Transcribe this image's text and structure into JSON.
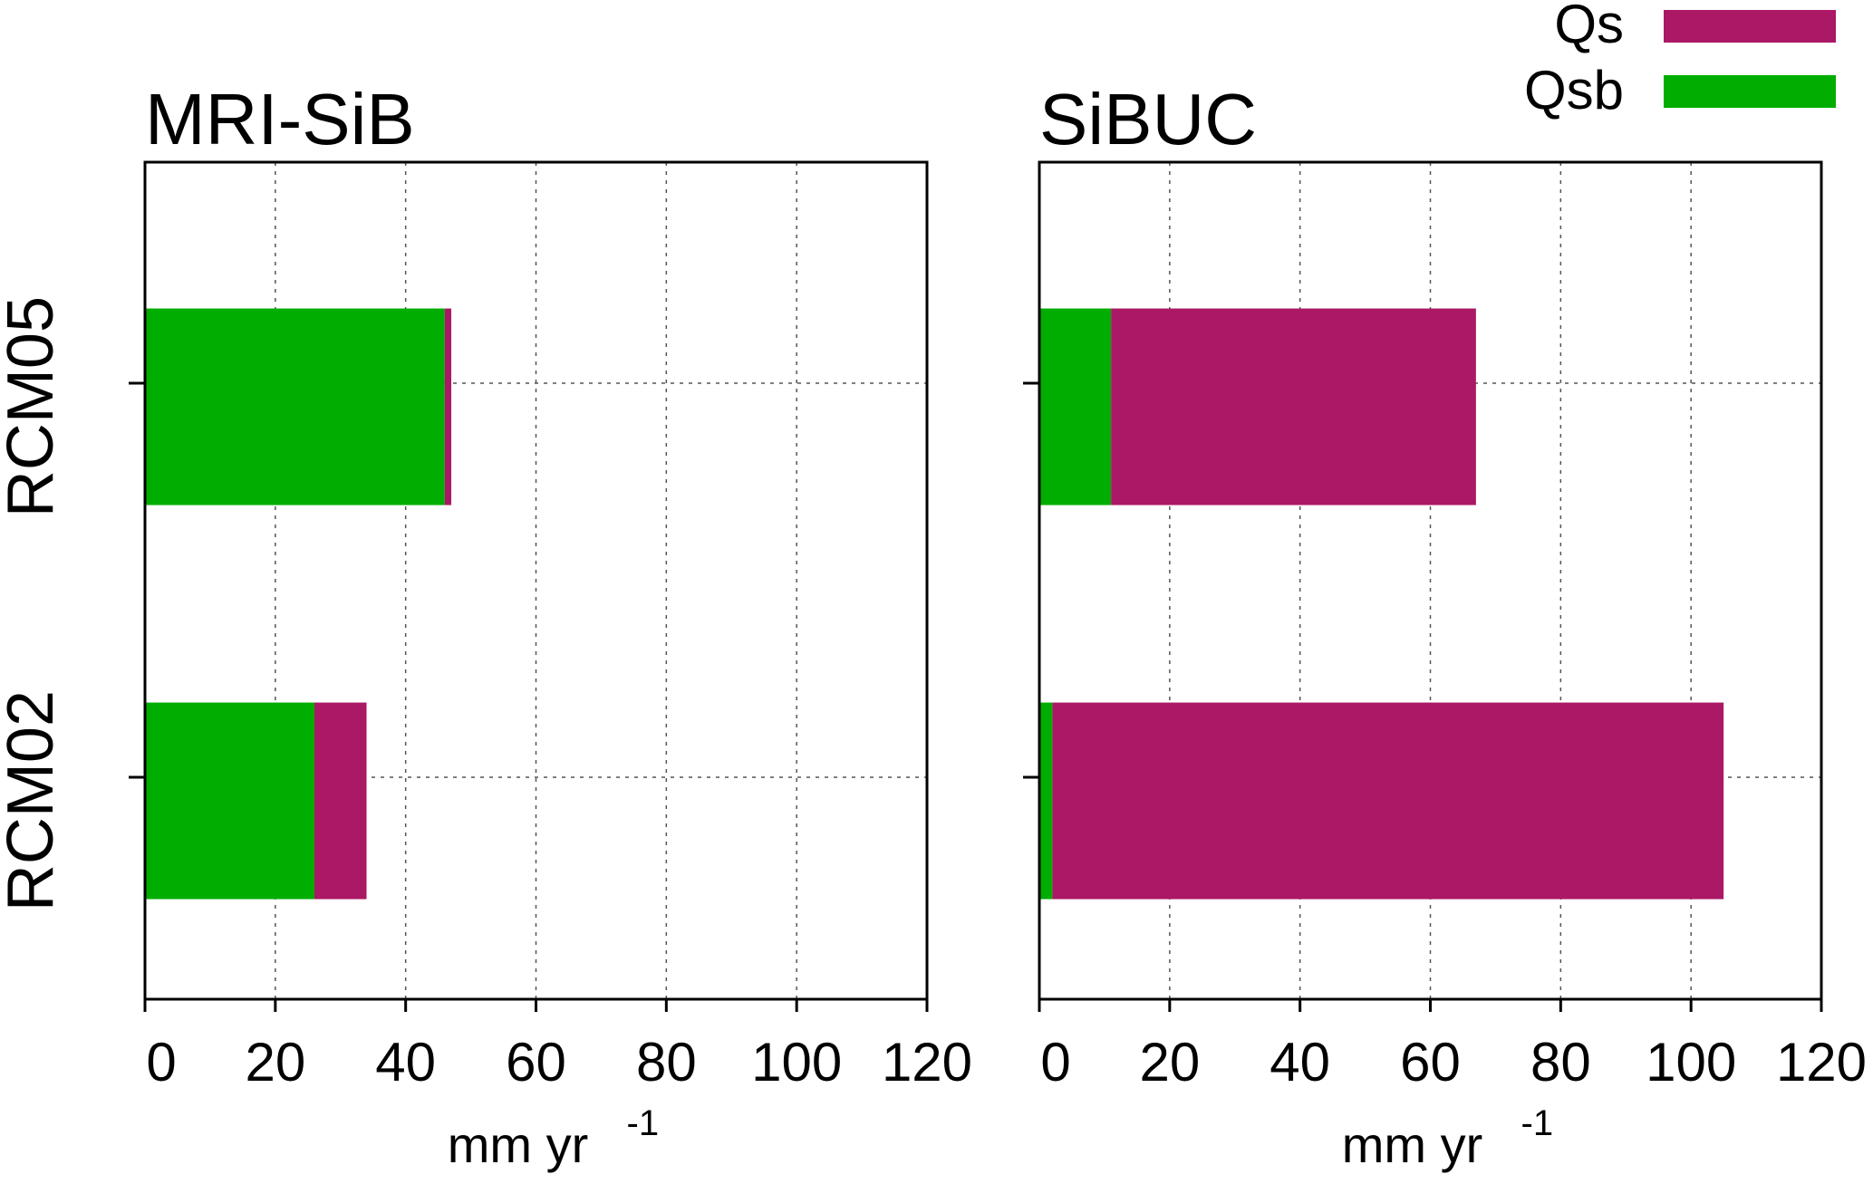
{
  "chart_data": [
    {
      "type": "bar",
      "orientation": "horizontal",
      "stacked": true,
      "title": "MRI-SiB",
      "xlabel": "mm yr",
      "xlabel_superscript": "-1",
      "categories": [
        "RCM05",
        "RCM02"
      ],
      "series": [
        {
          "name": "Qsb",
          "values": [
            46,
            26
          ]
        },
        {
          "name": "Qs",
          "values": [
            1,
            8
          ]
        }
      ],
      "xlim": [
        0,
        120
      ],
      "xticks": [
        "0",
        "20",
        "40",
        "60",
        "80",
        "100",
        "120"
      ],
      "grid": true
    },
    {
      "type": "bar",
      "orientation": "horizontal",
      "stacked": true,
      "title": "SiBUC",
      "xlabel": "mm yr",
      "xlabel_superscript": "-1",
      "categories": [
        "RCM05",
        "RCM02"
      ],
      "series": [
        {
          "name": "Qsb",
          "values": [
            11,
            2
          ]
        },
        {
          "name": "Qs",
          "values": [
            56,
            103
          ]
        }
      ],
      "xlim": [
        0,
        120
      ],
      "xticks": [
        "0",
        "20",
        "40",
        "60",
        "80",
        "100",
        "120"
      ],
      "grid": true
    }
  ],
  "legend": {
    "placement": "top-right",
    "entries": [
      {
        "label": "Qs",
        "color": "#ab1865"
      },
      {
        "label": "Qsb",
        "color": "#00ad00"
      }
    ]
  },
  "colors": {
    "Qs": "#ab1865",
    "Qsb": "#00ad00"
  }
}
